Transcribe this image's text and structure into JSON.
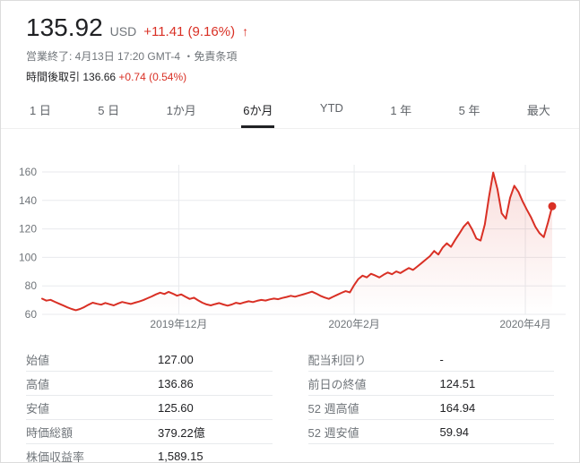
{
  "header": {
    "price": "135.92",
    "currency": "USD",
    "change": "+11.41 (9.16%)",
    "arrow": "↑",
    "market_status": "営業終了: 4月13日 17:20 GMT-4",
    "separator": " ・",
    "disclaimer": "免責条項",
    "after_hours_label": "時間後取引",
    "after_hours_price": "136.66",
    "after_hours_change": "+0.74 (0.54%)"
  },
  "tabs": {
    "selected_index": 3,
    "items": [
      {
        "label": "1 日"
      },
      {
        "label": "5 日"
      },
      {
        "label": "1か月"
      },
      {
        "label": "6か月"
      },
      {
        "label": "YTD"
      },
      {
        "label": "1 年"
      },
      {
        "label": "5 年"
      },
      {
        "label": "最大"
      }
    ]
  },
  "chart_data": {
    "type": "line",
    "unit": "USD",
    "period": "6か月",
    "ylim": [
      60,
      165
    ],
    "yticks": [
      60,
      80,
      100,
      120,
      140,
      160
    ],
    "xticks": [
      {
        "label": "2019年12月",
        "pos": 0.261
      },
      {
        "label": "2020年2月",
        "pos": 0.596
      },
      {
        "label": "2020年4月",
        "pos": 0.923
      }
    ],
    "last_value": 135.92,
    "values": [
      71.0,
      69.6,
      70.2,
      68.8,
      67.5,
      66.2,
      64.9,
      63.8,
      62.9,
      63.8,
      65.1,
      66.7,
      68.2,
      67.4,
      66.8,
      68.0,
      67.1,
      66.3,
      67.6,
      68.7,
      68.0,
      67.3,
      68.2,
      69.0,
      70.0,
      71.3,
      72.6,
      74.0,
      75.2,
      74.3,
      75.8,
      74.5,
      73.1,
      74.0,
      72.3,
      70.8,
      71.7,
      69.8,
      68.2,
      67.0,
      66.3,
      67.2,
      67.9,
      66.9,
      66.1,
      66.9,
      68.1,
      67.5,
      68.4,
      69.2,
      68.6,
      69.5,
      70.1,
      69.7,
      70.5,
      71.1,
      70.6,
      71.5,
      72.2,
      73.0,
      72.4,
      73.3,
      74.1,
      75.0,
      75.9,
      74.6,
      73.0,
      71.8,
      70.9,
      72.3,
      73.7,
      75.1,
      76.3,
      75.4,
      80.5,
      84.8,
      87.2,
      86.0,
      88.5,
      87.3,
      85.9,
      87.8,
      89.4,
      88.2,
      90.1,
      89.0,
      90.8,
      92.5,
      91.2,
      93.6,
      96.0,
      98.4,
      100.9,
      104.5,
      102.0,
      106.8,
      109.9,
      107.4,
      112.3,
      116.8,
      121.5,
      124.8,
      119.6,
      113.2,
      111.8,
      123.0,
      142.5,
      159.6,
      148.0,
      131.0,
      127.2,
      141.8,
      150.3,
      146.0,
      139.2,
      133.4,
      128.0,
      121.5,
      117.0,
      114.2,
      124.5,
      135.92
    ]
  },
  "stats": {
    "left": [
      {
        "label": "始値",
        "value": "127.00"
      },
      {
        "label": "高値",
        "value": "136.86"
      },
      {
        "label": "安値",
        "value": "125.60"
      },
      {
        "label": "時価総額",
        "value": "379.22億"
      },
      {
        "label": "株価収益率",
        "value": "1,589.15"
      }
    ],
    "right": [
      {
        "label": "配当利回り",
        "value": "-"
      },
      {
        "label": "前日の終値",
        "value": "124.51"
      },
      {
        "label": "52 週高値",
        "value": "164.94"
      },
      {
        "label": "52 週安値",
        "value": "59.94"
      }
    ]
  },
  "colors": {
    "up": "#d93025",
    "line": "#d93025",
    "grid": "#e8eaed",
    "muted_text": "#70757a"
  }
}
